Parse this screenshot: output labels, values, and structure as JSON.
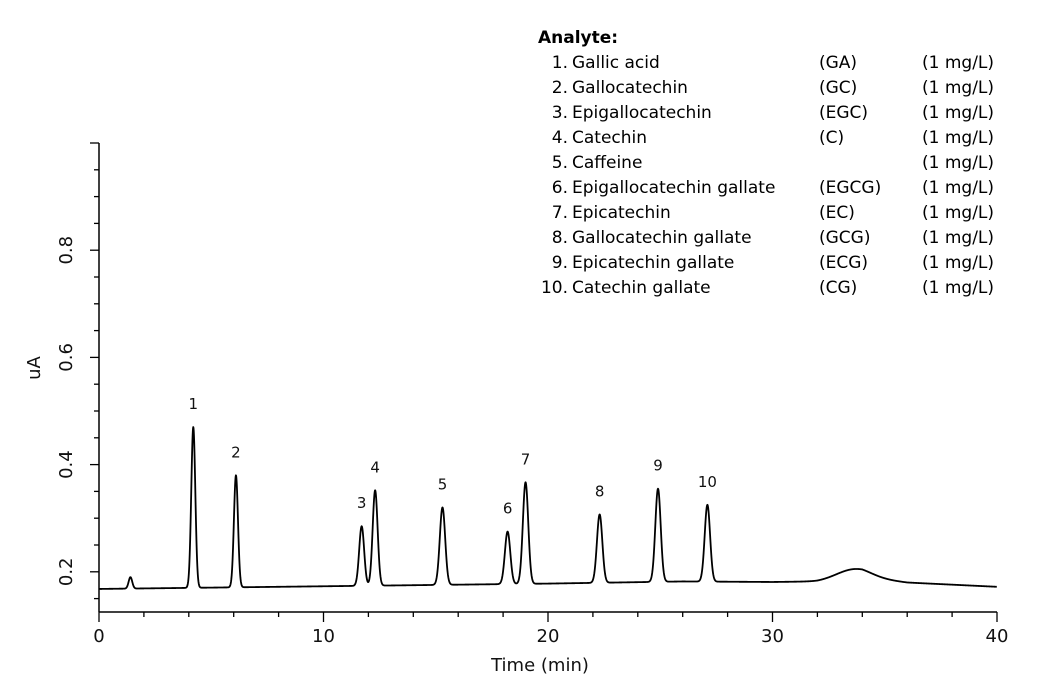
{
  "chart_data": {
    "type": "line",
    "xlabel": "Time (min)",
    "ylabel": "uA",
    "xlim": [
      0,
      40
    ],
    "ylim": [
      0.125,
      1.0
    ],
    "x_ticks": [
      0,
      10,
      20,
      30,
      40
    ],
    "y_ticks": [
      0.2,
      0.4,
      0.6,
      0.8
    ],
    "grid": false,
    "baseline": {
      "points": [
        [
          0,
          0.168
        ],
        [
          10,
          0.173
        ],
        [
          20,
          0.178
        ],
        [
          26,
          0.182
        ],
        [
          30,
          0.181
        ],
        [
          32,
          0.182
        ],
        [
          34,
          0.19
        ],
        [
          36,
          0.18
        ],
        [
          40,
          0.172
        ]
      ]
    },
    "small_peaks": [
      {
        "time": 1.4,
        "height": 0.19,
        "width": 0.08
      },
      {
        "time": 33.6,
        "height": 0.205,
        "width": 0.75
      }
    ],
    "peaks": [
      {
        "label": "1",
        "time": 4.2,
        "height": 0.47,
        "width": 0.09
      },
      {
        "label": "2",
        "time": 6.1,
        "height": 0.38,
        "width": 0.09
      },
      {
        "label": "3",
        "time": 11.7,
        "height": 0.285,
        "width": 0.11
      },
      {
        "label": "4",
        "time": 12.3,
        "height": 0.352,
        "width": 0.11
      },
      {
        "label": "5",
        "time": 15.3,
        "height": 0.32,
        "width": 0.12
      },
      {
        "label": "6",
        "time": 18.2,
        "height": 0.275,
        "width": 0.12
      },
      {
        "label": "7",
        "time": 19.0,
        "height": 0.367,
        "width": 0.12
      },
      {
        "label": "8",
        "time": 22.3,
        "height": 0.307,
        "width": 0.12
      },
      {
        "label": "9",
        "time": 24.9,
        "height": 0.355,
        "width": 0.12
      },
      {
        "label": "10",
        "time": 27.1,
        "height": 0.325,
        "width": 0.12
      }
    ]
  },
  "legend": {
    "title": "Analyte:",
    "items": [
      {
        "num": "1.",
        "name": "Gallic acid",
        "abbr": "(GA)",
        "conc": "(1 mg/L)"
      },
      {
        "num": "2.",
        "name": "Gallocatechin",
        "abbr": "(GC)",
        "conc": "(1 mg/L)"
      },
      {
        "num": "3.",
        "name": "Epigallocatechin",
        "abbr": "(EGC)",
        "conc": "(1 mg/L)"
      },
      {
        "num": "4.",
        "name": "Catechin",
        "abbr": "(C)",
        "conc": "(1 mg/L)"
      },
      {
        "num": "5.",
        "name": "Caffeine",
        "abbr": "",
        "conc": "(1 mg/L)"
      },
      {
        "num": "6.",
        "name": "Epigallocatechin gallate",
        "abbr": "(EGCG)",
        "conc": "(1 mg/L)"
      },
      {
        "num": "7.",
        "name": "Epicatechin",
        "abbr": "(EC)",
        "conc": "(1 mg/L)"
      },
      {
        "num": "8.",
        "name": "Gallocatechin gallate",
        "abbr": "(GCG)",
        "conc": "(1 mg/L)"
      },
      {
        "num": "9.",
        "name": "Epicatechin gallate",
        "abbr": "(ECG)",
        "conc": "(1 mg/L)"
      },
      {
        "num": "10.",
        "name": "Catechin gallate",
        "abbr": "(CG)",
        "conc": "(1 mg/L)"
      }
    ]
  },
  "colors": {
    "trace": "#000000",
    "axis": "#000000"
  }
}
